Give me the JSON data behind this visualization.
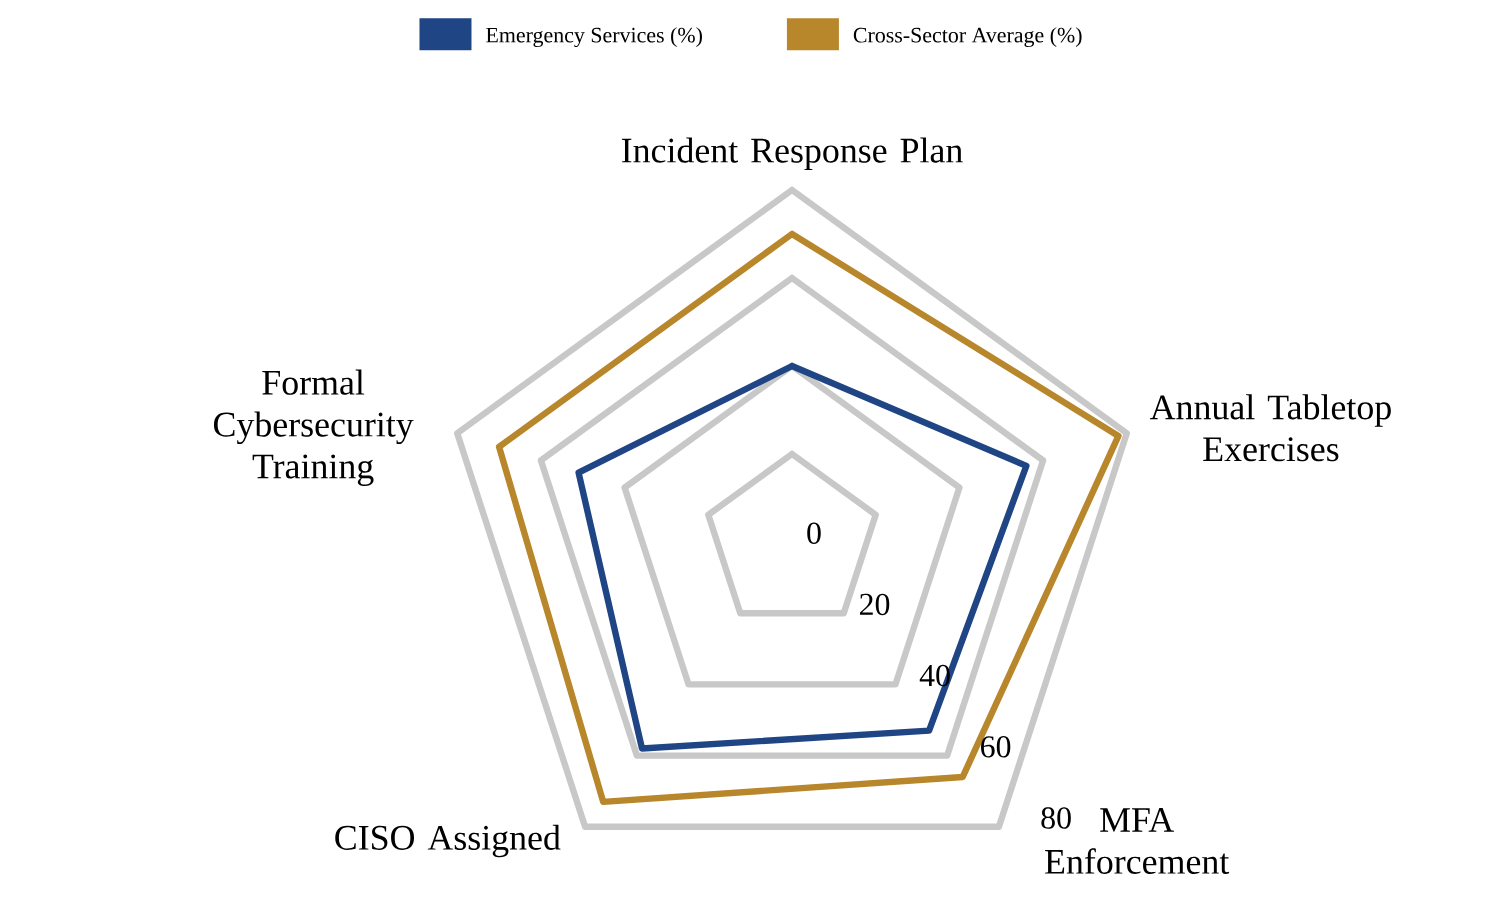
{
  "chart_data": {
    "type": "radar",
    "categories": [
      "Incident Response Plan",
      "Annual Tabletop Exercises",
      "MFA Enforcement",
      "CISO Assigned",
      "Formal Cybersecurity Training"
    ],
    "series": [
      {
        "name": "Emergency Services (%)",
        "color": "#1f4584",
        "values": [
          40,
          56,
          53,
          58,
          51
        ]
      },
      {
        "name": "Cross-Sector Average (%)",
        "color": "#b8862b",
        "values": [
          70,
          78,
          66,
          73,
          70
        ]
      }
    ],
    "ylim": [
      0,
      80
    ],
    "yticks": [
      0,
      20,
      40,
      60,
      80
    ],
    "grid": true,
    "legend": "top"
  }
}
